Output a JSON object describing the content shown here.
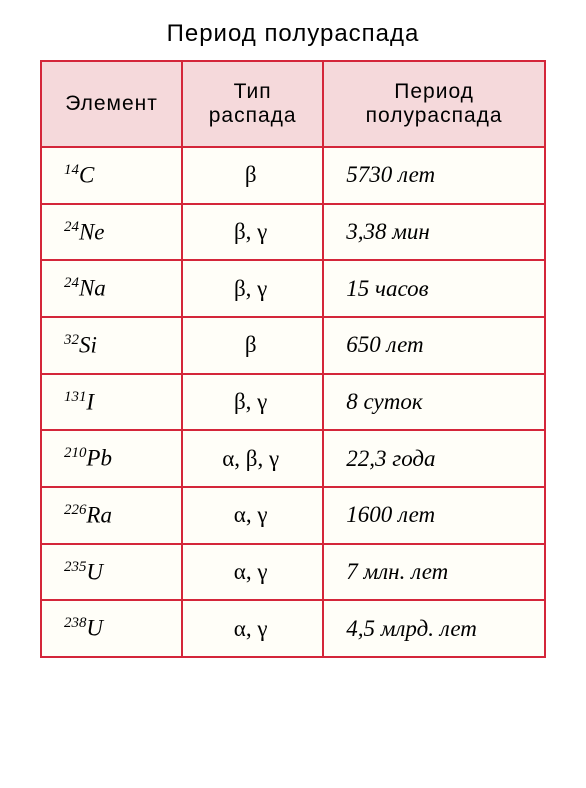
{
  "title": "Период полураспада",
  "columns": [
    "Элемент",
    "Тип распада",
    "Период полураспада"
  ],
  "rows": [
    {
      "mass": "14",
      "symbol": "C",
      "decay": "β",
      "period": "5730 лет"
    },
    {
      "mass": "24",
      "symbol": "Ne",
      "decay": "β, γ",
      "period": "3,38 мин"
    },
    {
      "mass": "24",
      "symbol": "Na",
      "decay": "β, γ",
      "period": "15 часов"
    },
    {
      "mass": "32",
      "symbol": "Si",
      "decay": "β",
      "period": "650 лет"
    },
    {
      "mass": "131",
      "symbol": "I",
      "decay": "β, γ",
      "period": "8 суток"
    },
    {
      "mass": "210",
      "symbol": "Pb",
      "decay": "α, β, γ",
      "period": "22,3 года"
    },
    {
      "mass": "226",
      "symbol": "Ra",
      "decay": "α, γ",
      "period": "1600 лет"
    },
    {
      "mass": "235",
      "symbol": "U",
      "decay": "α, γ",
      "period": "7 млн. лет"
    },
    {
      "mass": "238",
      "symbol": "U",
      "decay": "α, γ",
      "period": "4,5 млрд. лет"
    }
  ],
  "style": {
    "border_color": "#d4263a",
    "header_bg": "#f5d9db",
    "cell_bg": "#fffef8",
    "title_fontsize": 24,
    "header_fontsize": 21,
    "cell_fontsize": 23,
    "col_widths_pct": [
      28,
      28,
      44
    ]
  }
}
